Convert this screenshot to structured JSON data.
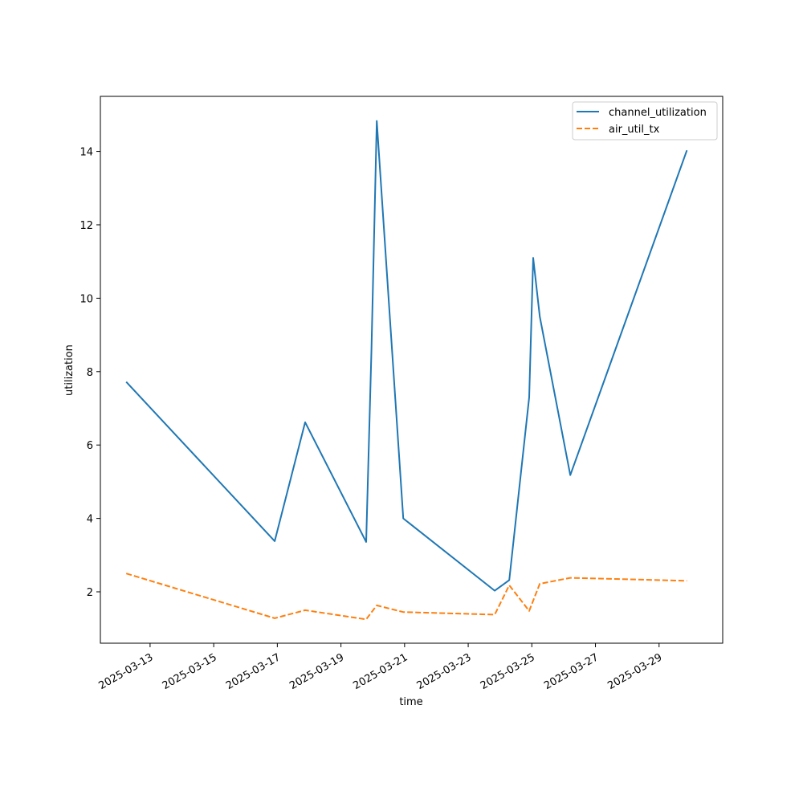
{
  "chart_data": {
    "type": "line",
    "title": "",
    "xlabel": "time",
    "ylabel": "utilization",
    "x_type": "date",
    "xlim": [
      "2025-03-11T10:30",
      "2025-03-31T00:00"
    ],
    "ylim": [
      0.6,
      15.5
    ],
    "x_ticks": [
      "2025-03-13",
      "2025-03-15",
      "2025-03-17",
      "2025-03-19",
      "2025-03-21",
      "2025-03-23",
      "2025-03-25",
      "2025-03-27",
      "2025-03-29"
    ],
    "y_ticks": [
      2,
      4,
      6,
      8,
      10,
      12,
      14
    ],
    "grid": false,
    "legend_position": "top-right",
    "series": [
      {
        "name": "channel_utilization",
        "color": "#1f77b4",
        "linestyle": "solid",
        "points": [
          {
            "x": "2025-03-12T06:00",
            "y": 7.72
          },
          {
            "x": "2025-03-16T22:00",
            "y": 3.38
          },
          {
            "x": "2025-03-17T21:00",
            "y": 6.62
          },
          {
            "x": "2025-03-19T19:00",
            "y": 3.36
          },
          {
            "x": "2025-03-19T23:00",
            "y": 8.6
          },
          {
            "x": "2025-03-20T03:00",
            "y": 14.83
          },
          {
            "x": "2025-03-20T23:00",
            "y": 4.0
          },
          {
            "x": "2025-03-23T20:00",
            "y": 2.03
          },
          {
            "x": "2025-03-24T07:00",
            "y": 2.32
          },
          {
            "x": "2025-03-24T22:00",
            "y": 7.3
          },
          {
            "x": "2025-03-25T01:00",
            "y": 11.1
          },
          {
            "x": "2025-03-25T06:00",
            "y": 9.5
          },
          {
            "x": "2025-03-26T05:00",
            "y": 5.18
          },
          {
            "x": "2025-03-29T21:00",
            "y": 14.03
          }
        ]
      },
      {
        "name": "air_util_tx",
        "color": "#ff7f0e",
        "linestyle": "dashed",
        "points": [
          {
            "x": "2025-03-12T06:00",
            "y": 2.5
          },
          {
            "x": "2025-03-16T22:00",
            "y": 1.28
          },
          {
            "x": "2025-03-17T21:00",
            "y": 1.5
          },
          {
            "x": "2025-03-19T19:00",
            "y": 1.25
          },
          {
            "x": "2025-03-20T03:00",
            "y": 1.63
          },
          {
            "x": "2025-03-20T23:00",
            "y": 1.45
          },
          {
            "x": "2025-03-23T20:00",
            "y": 1.38
          },
          {
            "x": "2025-03-24T07:00",
            "y": 2.18
          },
          {
            "x": "2025-03-24T22:00",
            "y": 1.48
          },
          {
            "x": "2025-03-25T06:00",
            "y": 2.22
          },
          {
            "x": "2025-03-26T05:00",
            "y": 2.38
          },
          {
            "x": "2025-03-29T21:00",
            "y": 2.3
          }
        ]
      }
    ]
  }
}
